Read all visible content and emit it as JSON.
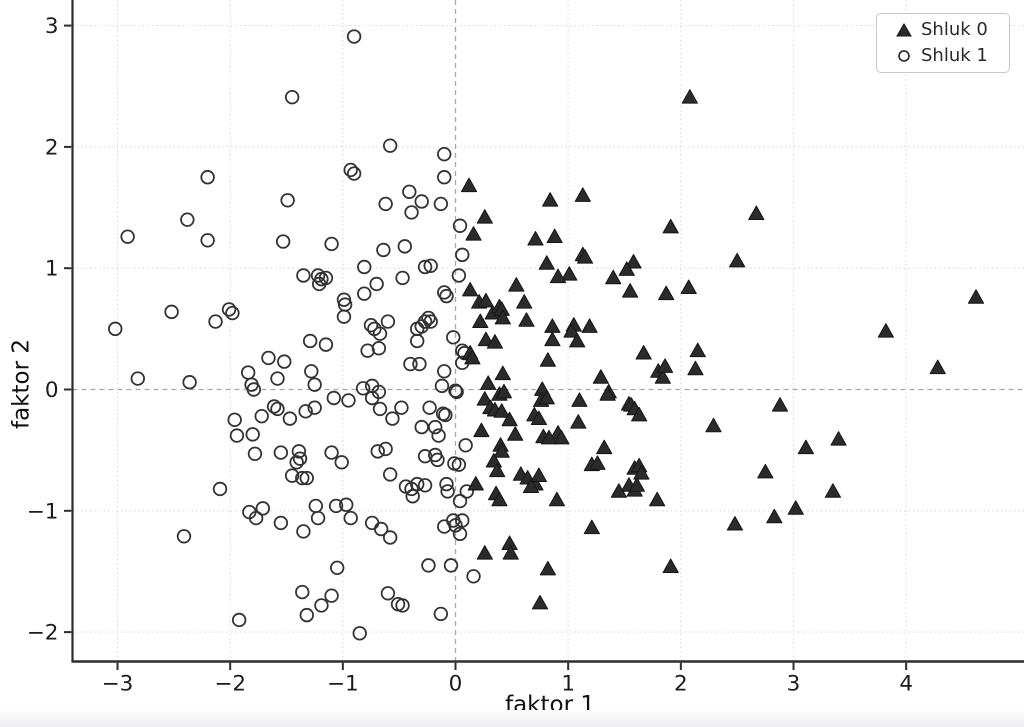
{
  "colors": {
    "background": "#ffffff",
    "triangle_fill": "#2b2b2b",
    "triangle_edge": "#161616",
    "circle_stroke": "#333333",
    "zero_line": "#a8a8a8",
    "grid_dotted": "#dcdcdc",
    "spine": "#2d2d2d",
    "tick_label": "#1c1c1c",
    "legend_border": "#c9c9c9"
  },
  "legend": {
    "items": [
      {
        "label": "Shluk 0",
        "marker": "filled-triangle"
      },
      {
        "label": "Shluk 1",
        "marker": "open-circle"
      }
    ]
  },
  "axes": {
    "x_label": "faktor 1",
    "y_label": "faktor 2",
    "x_tick_labels": [
      "−3",
      "−2",
      "−1",
      "0",
      "1",
      "2",
      "3",
      "4"
    ],
    "y_tick_labels": [
      "−2",
      "−1",
      "0",
      "1",
      "2",
      "3"
    ]
  },
  "chart_data": {
    "type": "scatter",
    "title": "",
    "xlabel": "faktor 1",
    "ylabel": "faktor 2",
    "xlim": [
      -3.4,
      5.0
    ],
    "ylim": [
      -2.24,
      3.21
    ],
    "x_ticks": [
      -3,
      -2,
      -1,
      0,
      1,
      2,
      3,
      4
    ],
    "y_ticks": [
      -2,
      -1,
      0,
      1,
      2,
      3
    ],
    "grid": "dotted light gridlines at ticks; dashed gray reference lines at x=0 and y=0",
    "legend_position": "upper right",
    "series": [
      {
        "name": "Shluk 0",
        "marker": "triangle",
        "points": [
          [
            2.08,
            2.41
          ],
          [
            0.12,
            1.68
          ],
          [
            1.13,
            1.6
          ],
          [
            0.84,
            1.56
          ],
          [
            0.26,
            1.42
          ],
          [
            0.16,
            1.28
          ],
          [
            1.91,
            1.34
          ],
          [
            0.71,
            1.24
          ],
          [
            0.88,
            1.26
          ],
          [
            1.13,
            1.11
          ],
          [
            1.15,
            1.09
          ],
          [
            0.81,
            1.04
          ],
          [
            1.58,
            1.05
          ],
          [
            1.52,
            0.99
          ],
          [
            1.01,
            0.95
          ],
          [
            0.91,
            0.93
          ],
          [
            1.4,
            0.92
          ],
          [
            2.07,
            0.84
          ],
          [
            1.55,
            0.81
          ],
          [
            1.87,
            0.79
          ],
          [
            0.54,
            0.86
          ],
          [
            0.13,
            0.82
          ],
          [
            0.21,
            0.72
          ],
          [
            0.27,
            0.73
          ],
          [
            0.33,
            0.63
          ],
          [
            0.39,
            0.68
          ],
          [
            0.41,
            0.66
          ],
          [
            0.61,
            0.72
          ],
          [
            0.22,
            0.56
          ],
          [
            0.42,
            0.59
          ],
          [
            0.63,
            0.57
          ],
          [
            0.86,
            0.52
          ],
          [
            1.05,
            0.53
          ],
          [
            1.03,
            0.48
          ],
          [
            1.19,
            0.52
          ],
          [
            2.67,
            1.45
          ],
          [
            2.5,
            1.06
          ],
          [
            4.62,
            0.76
          ],
          [
            3.82,
            0.48
          ],
          [
            0.27,
            0.41
          ],
          [
            0.35,
            0.39
          ],
          [
            0.86,
            0.41
          ],
          [
            1.08,
            0.4
          ],
          [
            0.13,
            0.3
          ],
          [
            0.15,
            0.26
          ],
          [
            0.82,
            0.24
          ],
          [
            1.67,
            0.3
          ],
          [
            2.15,
            0.32
          ],
          [
            2.13,
            0.17
          ],
          [
            1.29,
            0.1
          ],
          [
            1.36,
            -0.02
          ],
          [
            1.8,
            0.15
          ],
          [
            1.84,
            0.1
          ],
          [
            1.86,
            0.19
          ],
          [
            0.42,
            0.13
          ],
          [
            0.29,
            0.05
          ],
          [
            0.39,
            -0.04
          ],
          [
            0.43,
            -0.02
          ],
          [
            0.77,
            0.0
          ],
          [
            0.76,
            -0.09
          ],
          [
            0.81,
            -0.07
          ],
          [
            1.1,
            -0.09
          ],
          [
            1.35,
            -0.04
          ],
          [
            1.54,
            -0.12
          ],
          [
            1.56,
            -0.13
          ],
          [
            1.59,
            -0.16
          ],
          [
            1.63,
            -0.21
          ],
          [
            0.26,
            -0.08
          ],
          [
            0.31,
            -0.15
          ],
          [
            0.35,
            -0.17
          ],
          [
            0.41,
            -0.18
          ],
          [
            0.48,
            -0.25
          ],
          [
            0.53,
            -0.37
          ],
          [
            0.23,
            -0.34
          ],
          [
            0.7,
            -0.21
          ],
          [
            0.74,
            -0.24
          ],
          [
            1.09,
            -0.27
          ],
          [
            0.91,
            -0.36
          ],
          [
            0.94,
            -0.4
          ],
          [
            0.78,
            -0.39
          ],
          [
            0.83,
            -0.4
          ],
          [
            1.32,
            -0.48
          ],
          [
            1.21,
            -0.62
          ],
          [
            1.26,
            -0.61
          ],
          [
            0.4,
            -0.46
          ],
          [
            0.41,
            -0.51
          ],
          [
            0.34,
            -0.59
          ],
          [
            0.37,
            -0.67
          ],
          [
            0.58,
            -0.7
          ],
          [
            0.64,
            -0.73
          ],
          [
            0.71,
            -0.78
          ],
          [
            0.67,
            -0.8
          ],
          [
            0.74,
            -0.71
          ],
          [
            0.18,
            -0.78
          ],
          [
            0.36,
            -0.86
          ],
          [
            0.39,
            -0.91
          ],
          [
            0.9,
            -0.91
          ],
          [
            1.59,
            -0.65
          ],
          [
            1.63,
            -0.63
          ],
          [
            1.65,
            -0.69
          ],
          [
            1.54,
            -0.79
          ],
          [
            1.59,
            -0.83
          ],
          [
            1.61,
            -0.79
          ],
          [
            1.45,
            -0.84
          ],
          [
            1.79,
            -0.91
          ],
          [
            1.21,
            -1.14
          ],
          [
            0.26,
            -1.35
          ],
          [
            0.48,
            -1.27
          ],
          [
            0.49,
            -1.35
          ],
          [
            0.82,
            -1.48
          ],
          [
            1.91,
            -1.46
          ],
          [
            0.75,
            -1.76
          ],
          [
            4.28,
            0.18
          ],
          [
            2.88,
            -0.13
          ],
          [
            2.29,
            -0.3
          ],
          [
            3.11,
            -0.48
          ],
          [
            3.4,
            -0.41
          ],
          [
            2.75,
            -0.68
          ],
          [
            3.35,
            -0.84
          ],
          [
            2.83,
            -1.05
          ],
          [
            3.02,
            -0.98
          ],
          [
            2.48,
            -1.11
          ]
        ]
      },
      {
        "name": "Shluk 1",
        "marker": "circle-open",
        "points": [
          [
            -0.9,
            2.91
          ],
          [
            -1.45,
            2.41
          ],
          [
            -0.58,
            2.01
          ],
          [
            -2.2,
            1.75
          ],
          [
            -0.93,
            1.81
          ],
          [
            -0.9,
            1.78
          ],
          [
            -1.49,
            1.56
          ],
          [
            -0.62,
            1.53
          ],
          [
            -2.38,
            1.4
          ],
          [
            -2.91,
            1.26
          ],
          [
            -2.2,
            1.23
          ],
          [
            -1.53,
            1.22
          ],
          [
            -1.1,
            1.2
          ],
          [
            -0.64,
            1.15
          ],
          [
            -0.81,
            1.01
          ],
          [
            -1.35,
            0.94
          ],
          [
            -1.22,
            0.94
          ],
          [
            -1.19,
            0.91
          ],
          [
            -1.21,
            0.87
          ],
          [
            -1.15,
            0.92
          ],
          [
            -0.7,
            0.87
          ],
          [
            -0.81,
            0.79
          ],
          [
            -0.99,
            0.74
          ],
          [
            -0.98,
            0.7
          ],
          [
            -2.52,
            0.64
          ],
          [
            -2.01,
            0.66
          ],
          [
            -1.98,
            0.63
          ],
          [
            -2.13,
            0.56
          ],
          [
            -0.99,
            0.6
          ],
          [
            -3.02,
            0.5
          ],
          [
            -0.75,
            0.53
          ],
          [
            -0.72,
            0.5
          ],
          [
            -0.67,
            0.46
          ],
          [
            -0.6,
            0.56
          ],
          [
            -0.1,
            1.94
          ],
          [
            -0.1,
            1.75
          ],
          [
            -0.41,
            1.63
          ],
          [
            -0.3,
            1.55
          ],
          [
            -0.13,
            1.53
          ],
          [
            -0.39,
            1.46
          ],
          [
            0.04,
            1.35
          ],
          [
            -0.45,
            1.18
          ],
          [
            0.06,
            1.11
          ],
          [
            -0.27,
            1.01
          ],
          [
            -0.22,
            1.02
          ],
          [
            -0.47,
            0.92
          ],
          [
            0.03,
            0.94
          ],
          [
            -0.1,
            0.8
          ],
          [
            -0.08,
            0.77
          ],
          [
            -0.24,
            0.59
          ],
          [
            -0.22,
            0.56
          ],
          [
            -0.27,
            0.56
          ],
          [
            -0.34,
            0.5
          ],
          [
            -0.3,
            0.52
          ],
          [
            -0.02,
            0.43
          ],
          [
            -2.82,
            0.09
          ],
          [
            -2.36,
            0.06
          ],
          [
            -1.84,
            0.14
          ],
          [
            -1.81,
            0.04
          ],
          [
            -1.79,
            0.0
          ],
          [
            -1.66,
            0.26
          ],
          [
            -1.52,
            0.23
          ],
          [
            -1.58,
            0.09
          ],
          [
            -1.29,
            0.4
          ],
          [
            -1.15,
            0.37
          ],
          [
            -1.28,
            0.15
          ],
          [
            -1.25,
            0.04
          ],
          [
            -0.78,
            0.32
          ],
          [
            -0.68,
            0.34
          ],
          [
            -1.61,
            -0.14
          ],
          [
            -1.58,
            -0.16
          ],
          [
            -1.72,
            -0.22
          ],
          [
            -1.47,
            -0.24
          ],
          [
            -1.33,
            -0.18
          ],
          [
            -1.25,
            -0.15
          ],
          [
            -1.08,
            -0.07
          ],
          [
            -0.95,
            -0.09
          ],
          [
            -0.82,
            0.01
          ],
          [
            -0.74,
            0.03
          ],
          [
            -0.68,
            -0.02
          ],
          [
            -0.74,
            -0.07
          ],
          [
            -0.67,
            -0.16
          ],
          [
            -1.96,
            -0.25
          ],
          [
            -1.94,
            -0.38
          ],
          [
            -1.8,
            -0.37
          ],
          [
            -1.78,
            -0.53
          ],
          [
            -1.55,
            -0.52
          ],
          [
            -1.39,
            -0.51
          ],
          [
            -1.38,
            -0.57
          ],
          [
            -1.41,
            -0.6
          ],
          [
            -1.1,
            -0.52
          ],
          [
            -1.01,
            -0.6
          ],
          [
            -1.45,
            -0.71
          ],
          [
            -1.36,
            -0.73
          ],
          [
            -1.32,
            -0.73
          ],
          [
            -0.69,
            -0.51
          ],
          [
            -0.62,
            -0.49
          ],
          [
            -0.58,
            -0.7
          ],
          [
            -2.09,
            -0.82
          ],
          [
            -2.41,
            -1.21
          ],
          [
            -1.83,
            -1.01
          ],
          [
            -1.77,
            -1.06
          ],
          [
            -1.71,
            -0.98
          ],
          [
            -1.55,
            -1.1
          ],
          [
            -1.35,
            -1.17
          ],
          [
            -1.24,
            -0.96
          ],
          [
            -1.22,
            -1.06
          ],
          [
            -1.06,
            -0.96
          ],
          [
            -0.97,
            -0.95
          ],
          [
            -0.93,
            -1.06
          ],
          [
            -0.74,
            -1.1
          ],
          [
            -0.66,
            -1.15
          ],
          [
            -0.58,
            -1.22
          ],
          [
            -1.05,
            -1.47
          ],
          [
            -1.36,
            -1.67
          ],
          [
            -1.19,
            -1.78
          ],
          [
            -1.1,
            -1.7
          ],
          [
            -1.32,
            -1.86
          ],
          [
            -0.6,
            -1.68
          ],
          [
            -0.85,
            -2.01
          ],
          [
            -1.92,
            -1.9
          ],
          [
            -0.34,
            0.4
          ],
          [
            -0.4,
            0.21
          ],
          [
            -0.32,
            0.21
          ],
          [
            0.06,
            0.32
          ],
          [
            0.08,
            0.3
          ],
          [
            0.06,
            0.22
          ],
          [
            -0.1,
            0.15
          ],
          [
            -0.12,
            0.03
          ],
          [
            0.0,
            -0.01
          ],
          [
            0.01,
            -0.02
          ],
          [
            -0.48,
            -0.15
          ],
          [
            -0.56,
            -0.24
          ],
          [
            -0.23,
            -0.15
          ],
          [
            -0.11,
            -0.2
          ],
          [
            -0.09,
            -0.21
          ],
          [
            -0.3,
            -0.31
          ],
          [
            -0.18,
            -0.31
          ],
          [
            -0.15,
            -0.38
          ],
          [
            -0.27,
            -0.55
          ],
          [
            -0.18,
            -0.54
          ],
          [
            -0.16,
            -0.58
          ],
          [
            -0.01,
            -0.61
          ],
          [
            0.03,
            -0.62
          ],
          [
            0.09,
            -0.46
          ],
          [
            -0.44,
            -0.8
          ],
          [
            -0.39,
            -0.82
          ],
          [
            -0.34,
            -0.78
          ],
          [
            -0.27,
            -0.79
          ],
          [
            -0.38,
            -0.88
          ],
          [
            -0.08,
            -0.78
          ],
          [
            -0.07,
            -0.84
          ],
          [
            0.1,
            -0.84
          ],
          [
            0.04,
            -0.92
          ],
          [
            -0.1,
            -1.13
          ],
          [
            -0.02,
            -1.08
          ],
          [
            0.0,
            -1.12
          ],
          [
            0.06,
            -1.08
          ],
          [
            0.04,
            -1.19
          ],
          [
            -0.24,
            -1.45
          ],
          [
            -0.04,
            -1.45
          ],
          [
            0.16,
            -1.54
          ],
          [
            -0.51,
            -1.77
          ],
          [
            -0.47,
            -1.78
          ],
          [
            -0.13,
            -1.85
          ]
        ]
      }
    ]
  }
}
